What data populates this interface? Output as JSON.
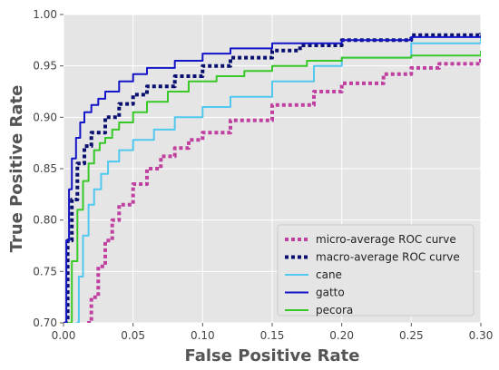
{
  "chart_data": {
    "type": "line",
    "title": "",
    "xlabel": "False Positive Rate",
    "ylabel": "True Positive Rate",
    "xlim": [
      0.0,
      0.3
    ],
    "ylim": [
      0.7,
      1.0
    ],
    "xticks": [
      "0.00",
      "0.05",
      "0.10",
      "0.15",
      "0.20",
      "0.25",
      "0.30"
    ],
    "yticks": [
      "0.70",
      "0.75",
      "0.80",
      "0.85",
      "0.90",
      "0.95",
      "1.00"
    ],
    "grid": true,
    "legend_position": "lower-right",
    "background": "#e5e5e5",
    "series": [
      {
        "name": "micro-average ROC curve",
        "color": "#c040a0",
        "style": "dotted",
        "x": [
          0.017,
          0.02,
          0.025,
          0.03,
          0.035,
          0.04,
          0.05,
          0.06,
          0.07,
          0.08,
          0.09,
          0.1,
          0.12,
          0.15,
          0.18,
          0.2,
          0.23,
          0.25,
          0.27,
          0.3
        ],
        "y": [
          0.7,
          0.725,
          0.755,
          0.78,
          0.8,
          0.815,
          0.835,
          0.85,
          0.862,
          0.87,
          0.878,
          0.885,
          0.897,
          0.912,
          0.925,
          0.933,
          0.942,
          0.948,
          0.952,
          0.96
        ]
      },
      {
        "name": "macro-average ROC curve",
        "color": "#0a1070",
        "style": "dotted",
        "x": [
          0.001,
          0.003,
          0.006,
          0.01,
          0.015,
          0.02,
          0.03,
          0.04,
          0.05,
          0.06,
          0.08,
          0.1,
          0.12,
          0.15,
          0.17,
          0.2,
          0.25,
          0.3
        ],
        "y": [
          0.7,
          0.78,
          0.82,
          0.855,
          0.872,
          0.885,
          0.9,
          0.913,
          0.922,
          0.93,
          0.94,
          0.95,
          0.958,
          0.965,
          0.97,
          0.975,
          0.98,
          0.982
        ]
      },
      {
        "name": "cane",
        "color": "#50c8f0",
        "style": "solid",
        "x": [
          0.009,
          0.011,
          0.014,
          0.018,
          0.022,
          0.027,
          0.032,
          0.04,
          0.05,
          0.065,
          0.08,
          0.1,
          0.12,
          0.15,
          0.18,
          0.2,
          0.25,
          0.3
        ],
        "y": [
          0.7,
          0.745,
          0.785,
          0.815,
          0.83,
          0.845,
          0.857,
          0.868,
          0.878,
          0.888,
          0.9,
          0.91,
          0.92,
          0.935,
          0.95,
          0.958,
          0.972,
          0.978
        ]
      },
      {
        "name": "gatto",
        "color": "#1414c8",
        "style": "solid",
        "x": [
          0.0,
          0.002,
          0.004,
          0.006,
          0.009,
          0.012,
          0.015,
          0.02,
          0.025,
          0.03,
          0.04,
          0.05,
          0.06,
          0.08,
          0.1,
          0.12,
          0.15,
          0.2,
          0.25,
          0.3
        ],
        "y": [
          0.7,
          0.78,
          0.83,
          0.86,
          0.88,
          0.895,
          0.905,
          0.912,
          0.918,
          0.925,
          0.935,
          0.942,
          0.948,
          0.955,
          0.962,
          0.967,
          0.972,
          0.975,
          0.978,
          0.98
        ]
      },
      {
        "name": "pecora",
        "color": "#38c828",
        "style": "solid",
        "x": [
          0.003,
          0.006,
          0.01,
          0.014,
          0.018,
          0.022,
          0.026,
          0.03,
          0.035,
          0.04,
          0.05,
          0.06,
          0.075,
          0.09,
          0.11,
          0.13,
          0.15,
          0.175,
          0.2,
          0.25,
          0.3
        ],
        "y": [
          0.7,
          0.76,
          0.81,
          0.838,
          0.855,
          0.868,
          0.875,
          0.88,
          0.888,
          0.895,
          0.905,
          0.915,
          0.925,
          0.935,
          0.94,
          0.945,
          0.95,
          0.955,
          0.958,
          0.96,
          0.965
        ]
      }
    ]
  }
}
